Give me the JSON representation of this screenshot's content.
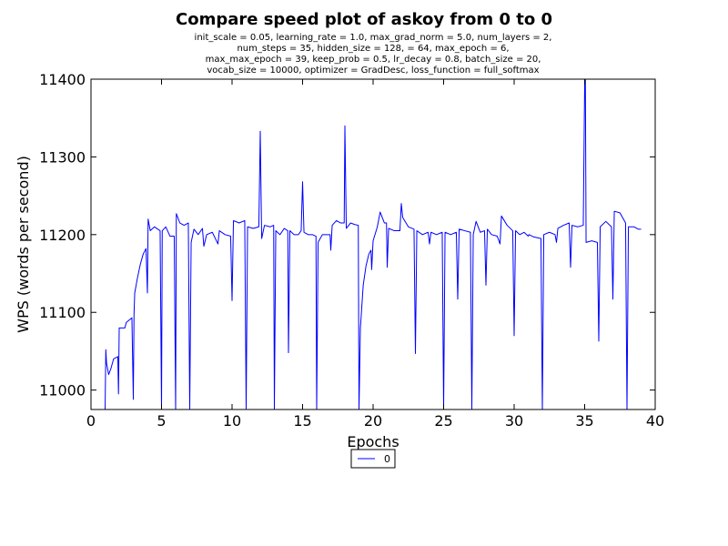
{
  "chart_data": {
    "type": "line",
    "title": "Compare speed plot of askoy from 0 to 0",
    "subtitle_lines": [
      "init_scale = 0.05, learning_rate = 1.0, max_grad_norm = 5.0, num_layers = 2,",
      "num_steps = 35, hidden_size = 128,   = 64, max_epoch = 6,",
      "max_max_epoch = 39, keep_prob = 0.5, lr_decay = 0.8, batch_size = 20,",
      "vocab_size = 10000, optimizer = GradDesc, loss_function = full_softmax"
    ],
    "xlabel": "Epochs",
    "ylabel": "WPS (words per second)",
    "xlim": [
      0,
      40
    ],
    "ylim": [
      10975,
      11400
    ],
    "xticks": [
      0,
      5,
      10,
      15,
      20,
      25,
      30,
      35,
      40
    ],
    "yticks": [
      11000,
      11100,
      11200,
      11300,
      11400
    ],
    "grid": false,
    "legend": {
      "placement": "bottom-center",
      "entries": [
        "0"
      ]
    },
    "series": [
      {
        "name": "0",
        "color": "#0000ff",
        "points": [
          [
            1.0,
            10975
          ],
          [
            1.05,
            11052
          ],
          [
            1.1,
            11035
          ],
          [
            1.25,
            11020
          ],
          [
            1.4,
            11027
          ],
          [
            1.6,
            11040
          ],
          [
            1.9,
            11043
          ],
          [
            1.95,
            10995
          ],
          [
            2.0,
            11080
          ],
          [
            2.4,
            11080
          ],
          [
            2.5,
            11087
          ],
          [
            2.9,
            11093
          ],
          [
            3.0,
            10988
          ],
          [
            3.05,
            11098
          ],
          [
            3.1,
            11125
          ],
          [
            3.3,
            11145
          ],
          [
            3.5,
            11162
          ],
          [
            3.7,
            11175
          ],
          [
            3.9,
            11182
          ],
          [
            4.0,
            11125
          ],
          [
            4.05,
            11220
          ],
          [
            4.2,
            11205
          ],
          [
            4.5,
            11210
          ],
          [
            4.9,
            11205
          ],
          [
            5.0,
            10975
          ],
          [
            5.05,
            11205
          ],
          [
            5.3,
            11210
          ],
          [
            5.6,
            11198
          ],
          [
            5.9,
            11198
          ],
          [
            6.0,
            10975
          ],
          [
            6.05,
            11227
          ],
          [
            6.3,
            11215
          ],
          [
            6.6,
            11212
          ],
          [
            6.9,
            11215
          ],
          [
            7.0,
            10975
          ],
          [
            7.1,
            11190
          ],
          [
            7.3,
            11207
          ],
          [
            7.6,
            11200
          ],
          [
            7.9,
            11208
          ],
          [
            8.0,
            11185
          ],
          [
            8.2,
            11200
          ],
          [
            8.6,
            11203
          ],
          [
            9.0,
            11188
          ],
          [
            9.1,
            11205
          ],
          [
            9.5,
            11200
          ],
          [
            9.9,
            11198
          ],
          [
            10.0,
            11115
          ],
          [
            10.1,
            11218
          ],
          [
            10.5,
            11215
          ],
          [
            10.9,
            11218
          ],
          [
            11.0,
            10975
          ],
          [
            11.1,
            11210
          ],
          [
            11.5,
            11208
          ],
          [
            11.9,
            11210
          ],
          [
            12.0,
            11333
          ],
          [
            12.1,
            11195
          ],
          [
            12.3,
            11212
          ],
          [
            12.7,
            11210
          ],
          [
            12.95,
            11212
          ],
          [
            13.0,
            10975
          ],
          [
            13.1,
            11205
          ],
          [
            13.4,
            11200
          ],
          [
            13.7,
            11208
          ],
          [
            13.95,
            11205
          ],
          [
            14.0,
            11048
          ],
          [
            14.1,
            11205
          ],
          [
            14.4,
            11200
          ],
          [
            14.7,
            11200
          ],
          [
            14.9,
            11205
          ],
          [
            15.0,
            11268
          ],
          [
            15.1,
            11203
          ],
          [
            15.4,
            11200
          ],
          [
            15.7,
            11200
          ],
          [
            15.95,
            11198
          ],
          [
            16.0,
            10975
          ],
          [
            16.1,
            11190
          ],
          [
            16.4,
            11200
          ],
          [
            16.7,
            11200
          ],
          [
            16.95,
            11200
          ],
          [
            17.0,
            11180
          ],
          [
            17.1,
            11212
          ],
          [
            17.4,
            11218
          ],
          [
            17.7,
            11215
          ],
          [
            17.95,
            11215
          ],
          [
            18.0,
            11340
          ],
          [
            18.1,
            11208
          ],
          [
            18.4,
            11215
          ],
          [
            18.7,
            11213
          ],
          [
            18.95,
            11212
          ],
          [
            19.0,
            10975
          ],
          [
            19.1,
            11080
          ],
          [
            19.3,
            11135
          ],
          [
            19.5,
            11160
          ],
          [
            19.7,
            11175
          ],
          [
            19.85,
            11180
          ],
          [
            19.9,
            11155
          ],
          [
            20.0,
            11192
          ],
          [
            20.3,
            11210
          ],
          [
            20.5,
            11229
          ],
          [
            20.8,
            11215
          ],
          [
            20.95,
            11215
          ],
          [
            21.0,
            11158
          ],
          [
            21.1,
            11208
          ],
          [
            21.5,
            11205
          ],
          [
            21.9,
            11205
          ],
          [
            22.0,
            11240
          ],
          [
            22.1,
            11222
          ],
          [
            22.5,
            11210
          ],
          [
            22.9,
            11207
          ],
          [
            23.0,
            11047
          ],
          [
            23.1,
            11205
          ],
          [
            23.5,
            11200
          ],
          [
            23.9,
            11203
          ],
          [
            24.0,
            11188
          ],
          [
            24.1,
            11203
          ],
          [
            24.5,
            11200
          ],
          [
            24.9,
            11203
          ],
          [
            25.0,
            10975
          ],
          [
            25.1,
            11203
          ],
          [
            25.5,
            11200
          ],
          [
            25.9,
            11203
          ],
          [
            26.0,
            11117
          ],
          [
            26.1,
            11207
          ],
          [
            26.5,
            11205
          ],
          [
            26.9,
            11203
          ],
          [
            27.0,
            10975
          ],
          [
            27.1,
            11200
          ],
          [
            27.3,
            11217
          ],
          [
            27.6,
            11203
          ],
          [
            27.9,
            11205
          ],
          [
            28.0,
            11135
          ],
          [
            28.1,
            11207
          ],
          [
            28.4,
            11200
          ],
          [
            28.8,
            11198
          ],
          [
            29.0,
            11188
          ],
          [
            29.1,
            11224
          ],
          [
            29.5,
            11212
          ],
          [
            29.9,
            11205
          ],
          [
            30.0,
            11070
          ],
          [
            30.1,
            11205
          ],
          [
            30.4,
            11200
          ],
          [
            30.7,
            11203
          ],
          [
            31.0,
            11198
          ],
          [
            31.05,
            11200
          ],
          [
            31.4,
            11197
          ],
          [
            31.9,
            11195
          ],
          [
            32.0,
            10975
          ],
          [
            32.1,
            11200
          ],
          [
            32.5,
            11203
          ],
          [
            32.9,
            11200
          ],
          [
            33.0,
            11190
          ],
          [
            33.1,
            11208
          ],
          [
            33.5,
            11212
          ],
          [
            33.9,
            11215
          ],
          [
            34.0,
            11158
          ],
          [
            34.1,
            11212
          ],
          [
            34.5,
            11210
          ],
          [
            34.9,
            11212
          ],
          [
            35.0,
            11395
          ],
          [
            35.05,
            11400
          ],
          [
            35.1,
            11190
          ],
          [
            35.5,
            11192
          ],
          [
            35.9,
            11190
          ],
          [
            36.0,
            11063
          ],
          [
            36.1,
            11210
          ],
          [
            36.5,
            11217
          ],
          [
            36.9,
            11210
          ],
          [
            37.0,
            11117
          ],
          [
            37.1,
            11230
          ],
          [
            37.5,
            11228
          ],
          [
            37.9,
            11215
          ],
          [
            38.0,
            10975
          ],
          [
            38.1,
            11210
          ],
          [
            38.5,
            11210
          ],
          [
            38.8,
            11207
          ],
          [
            39.0,
            11207
          ]
        ]
      }
    ]
  }
}
